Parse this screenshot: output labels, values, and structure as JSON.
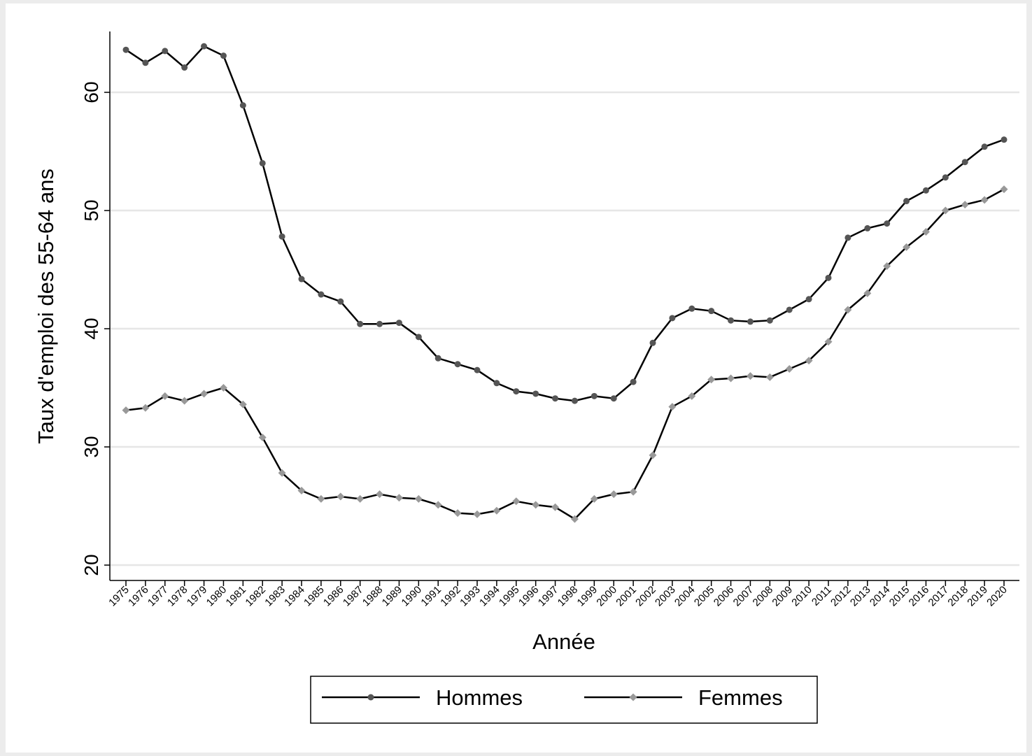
{
  "chart_data": {
    "type": "line",
    "x_label": "Année",
    "y_label": "Taux d'emploi des 55-64 ans",
    "categories": [
      "1975",
      "1976",
      "1977",
      "1978",
      "1979",
      "1980",
      "1981",
      "1982",
      "1983",
      "1984",
      "1985",
      "1986",
      "1987",
      "1988",
      "1989",
      "1990",
      "1991",
      "1992",
      "1993",
      "1994",
      "1995",
      "1996",
      "1997",
      "1998",
      "1999",
      "2000",
      "2001",
      "2002",
      "2003",
      "2004",
      "2005",
      "2006",
      "2007",
      "2008",
      "2009",
      "2010",
      "2011",
      "2012",
      "2013",
      "2014",
      "2015",
      "2016",
      "2017",
      "2018",
      "2019",
      "2020"
    ],
    "series": [
      {
        "name": "Hommes",
        "color": "#555555",
        "marker": "circle",
        "values": [
          63.6,
          62.5,
          63.5,
          62.1,
          63.9,
          63.1,
          58.9,
          54.0,
          47.8,
          44.2,
          42.9,
          42.3,
          40.4,
          40.4,
          40.5,
          39.3,
          37.5,
          37.0,
          36.5,
          35.4,
          34.7,
          34.5,
          34.1,
          33.9,
          34.3,
          34.1,
          35.5,
          38.8,
          40.9,
          41.7,
          41.5,
          40.7,
          40.6,
          40.7,
          41.6,
          42.5,
          44.3,
          47.7,
          48.5,
          48.9,
          50.8,
          51.7,
          52.8,
          54.1,
          55.4,
          56.0
        ]
      },
      {
        "name": "Femmes",
        "color": "#999999",
        "marker": "diamond",
        "values": [
          33.1,
          33.3,
          34.3,
          33.9,
          34.5,
          35.0,
          33.6,
          30.8,
          27.8,
          26.3,
          25.6,
          25.8,
          25.6,
          26.0,
          25.7,
          25.6,
          25.1,
          24.4,
          24.3,
          24.6,
          25.4,
          25.1,
          24.9,
          23.9,
          25.6,
          26.0,
          26.2,
          29.3,
          33.4,
          34.3,
          35.7,
          35.8,
          36.0,
          35.9,
          36.6,
          37.3,
          38.9,
          41.6,
          43.0,
          45.3,
          46.9,
          48.2,
          50.0,
          50.5,
          50.9,
          51.8
        ]
      }
    ],
    "ylim": [
      18.7,
      65.15
    ],
    "yticks": [
      20,
      30,
      40,
      50,
      60
    ],
    "grid": true,
    "legend": "bottom"
  }
}
